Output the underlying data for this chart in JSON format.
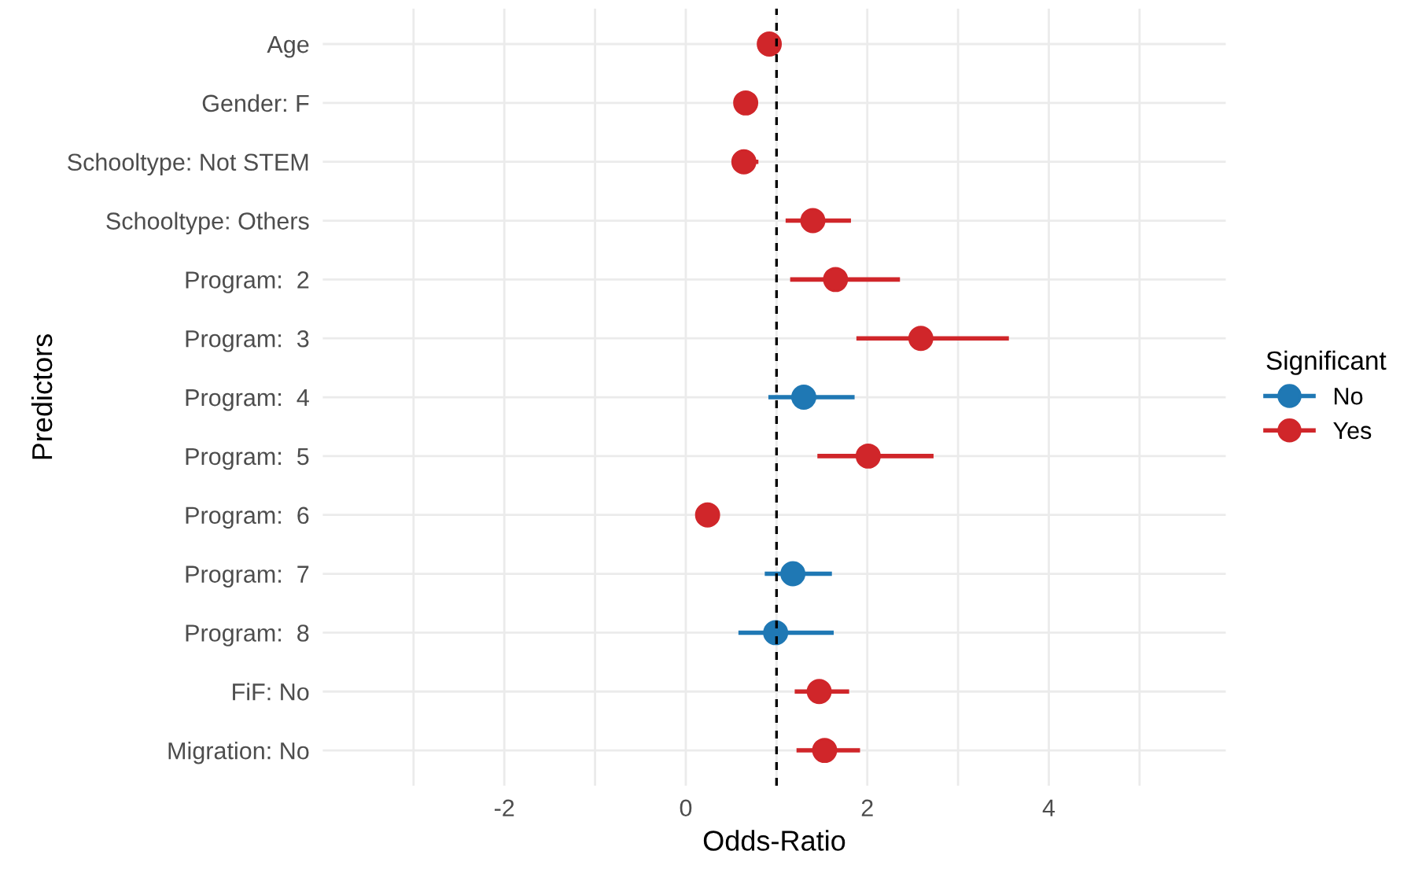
{
  "chart_data": {
    "type": "scatter",
    "orientation": "horizontal",
    "xlabel": "Odds-Ratio",
    "ylabel": "Predictors",
    "legend_title": "Significant",
    "legend": "right",
    "grid": true,
    "marker": "circle",
    "categories": [
      "Age",
      "Gender: F",
      "Schooltype: Not STEM",
      "Schooltype: Others",
      "Program:  2",
      "Program:  3",
      "Program:  4",
      "Program:  5",
      "Program:  6",
      "Program:  7",
      "Program:  8",
      "FiF: No",
      "Migration: No"
    ],
    "xlim": [
      -4,
      5.95
    ],
    "xticks": [
      {
        "value": -3,
        "label": null
      },
      -2,
      {
        "value": -1,
        "label": null
      },
      0,
      {
        "value": 1,
        "label": null
      },
      2,
      {
        "value": 3,
        "label": null
      },
      4,
      {
        "value": 5,
        "label": null
      }
    ],
    "series": [
      {
        "name": "No",
        "color": "#1f78b4",
        "values": [
          null,
          null,
          null,
          null,
          null,
          null,
          1.3,
          null,
          null,
          1.18,
          0.99,
          null,
          null
        ],
        "errors": [
          null,
          null,
          null,
          null,
          null,
          null,
          [
            0.91,
            1.86
          ],
          null,
          null,
          [
            0.87,
            1.61
          ],
          [
            0.58,
            1.63
          ],
          null,
          null
        ]
      },
      {
        "name": "Yes",
        "color": "#d0262a",
        "values": [
          0.92,
          0.66,
          0.64,
          1.4,
          1.65,
          2.59,
          null,
          2.01,
          0.24,
          null,
          null,
          1.47,
          1.53
        ],
        "errors": [
          [
            0.89,
            0.95
          ],
          null,
          [
            0.57,
            0.8
          ],
          [
            1.1,
            1.82
          ],
          [
            1.15,
            2.36
          ],
          [
            1.88,
            3.56
          ],
          null,
          [
            1.45,
            2.73
          ],
          [
            0.24,
            0.32
          ],
          null,
          null,
          [
            1.2,
            1.8
          ],
          [
            1.22,
            1.92
          ]
        ]
      }
    ],
    "ref_lines": [
      {
        "axis": "x",
        "value": 1,
        "color": "#000000",
        "line_style": "dashed"
      }
    ]
  }
}
